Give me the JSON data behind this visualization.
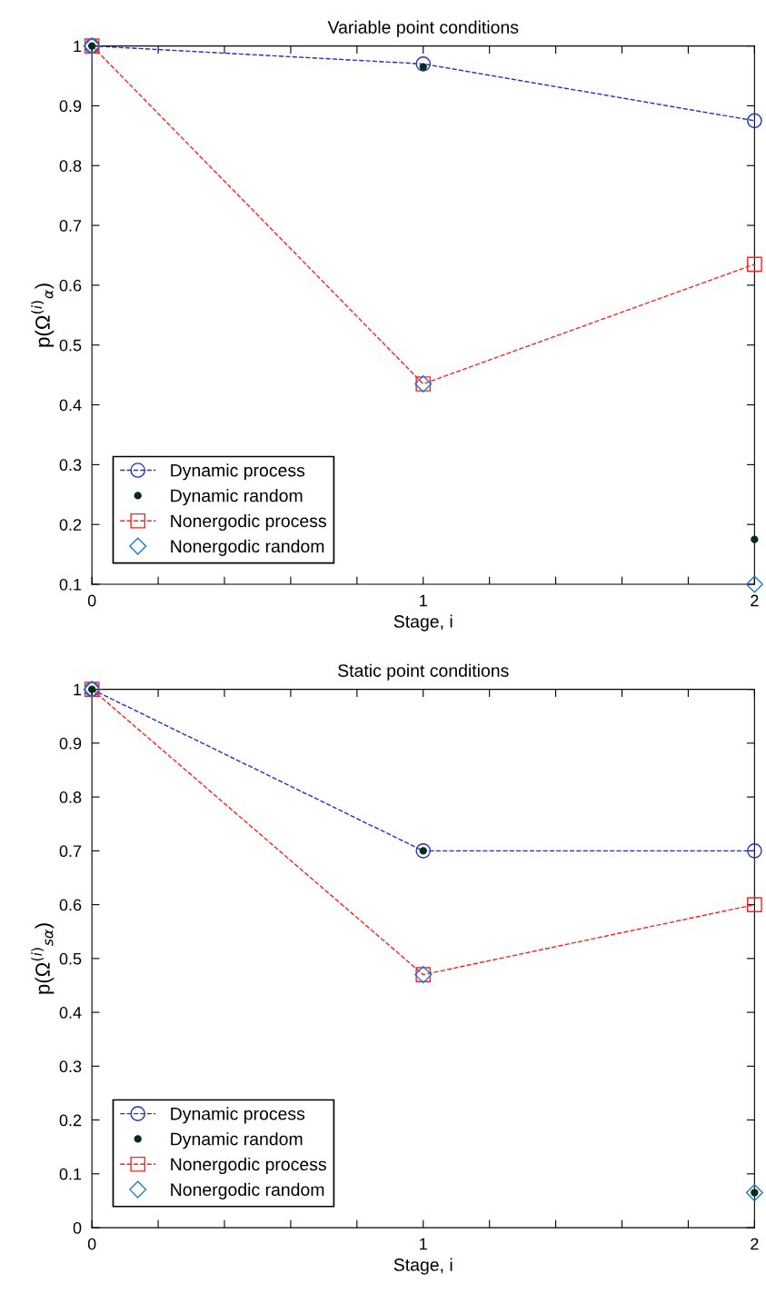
{
  "chart_data": [
    {
      "type": "line",
      "title": "Variable point conditions",
      "xlabel": "Stage, i",
      "ylabel": "p(Ω$^{(i)}$$_{α}$)",
      "x": [
        0,
        1,
        2
      ],
      "series": [
        {
          "name": "Dynamic process",
          "color": "#1f2fd0",
          "marker": "circle",
          "line_style": "dashed",
          "values": [
            1.0,
            0.97,
            0.875
          ]
        },
        {
          "name": "Dynamic random",
          "type": "scatter",
          "color": "#0a2a1a",
          "marker": "circle",
          "values": [
            1.0,
            0.965,
            0.175
          ]
        },
        {
          "name": "Nonergodic process",
          "color": "#ff2020",
          "marker": "square",
          "line_style": "dashed",
          "values": [
            1.0,
            0.435,
            0.635
          ]
        },
        {
          "name": "Nonergodic random",
          "type": "scatter",
          "color": "#1a7ad8",
          "marker": "diamond",
          "values": [
            1.0,
            0.435,
            0.1
          ]
        }
      ],
      "xlim": [
        0,
        2
      ],
      "ylim": [
        0.1,
        1
      ],
      "xticks": [
        0,
        {
          "value": 0.2,
          "label": null
        },
        {
          "value": 0.4,
          "label": null
        },
        {
          "value": 0.6,
          "label": null
        },
        {
          "value": 0.8,
          "label": null
        },
        1,
        {
          "value": 1.2,
          "label": null
        },
        {
          "value": 1.4,
          "label": null
        },
        {
          "value": 1.6,
          "label": null
        },
        {
          "value": 1.8,
          "label": null
        },
        2
      ],
      "yticks": [
        0.1,
        0.2,
        0.3,
        0.4,
        0.5,
        0.6,
        0.7,
        0.8,
        0.9,
        1
      ],
      "grid": false,
      "legend": "bottom left"
    },
    {
      "type": "line",
      "title": "Static point conditions",
      "xlabel": "Stage, i",
      "ylabel": "p(Ω$^{(i)}$$_{sα}$)",
      "x": [
        0,
        1,
        2
      ],
      "series": [
        {
          "name": "Dynamic process",
          "color": "#1f2fd0",
          "marker": "circle",
          "line_style": "dashed",
          "values": [
            1.0,
            0.7,
            0.7
          ]
        },
        {
          "name": "Dynamic random",
          "type": "scatter",
          "color": "#0a2a1a",
          "marker": "circle",
          "values": [
            1.0,
            0.7,
            0.065
          ]
        },
        {
          "name": "Nonergodic process",
          "color": "#ff2020",
          "marker": "square",
          "line_style": "dashed",
          "values": [
            1.0,
            0.47,
            0.6
          ]
        },
        {
          "name": "Nonergodic random",
          "type": "scatter",
          "color": "#1a7ad8",
          "marker": "diamond",
          "values": [
            1.0,
            0.47,
            0.065
          ]
        }
      ],
      "xlim": [
        0,
        2
      ],
      "ylim": [
        0,
        1
      ],
      "xticks": [
        0,
        {
          "value": 0.2,
          "label": null
        },
        {
          "value": 0.4,
          "label": null
        },
        {
          "value": 0.6,
          "label": null
        },
        {
          "value": 0.8,
          "label": null
        },
        1,
        {
          "value": 1.2,
          "label": null
        },
        {
          "value": 1.4,
          "label": null
        },
        {
          "value": 1.6,
          "label": null
        },
        {
          "value": 1.8,
          "label": null
        },
        2
      ],
      "yticks": [
        0,
        0.1,
        0.2,
        0.3,
        0.4,
        0.5,
        0.6,
        0.7,
        0.8,
        0.9,
        1
      ],
      "grid": false,
      "legend": "bottom left"
    }
  ]
}
